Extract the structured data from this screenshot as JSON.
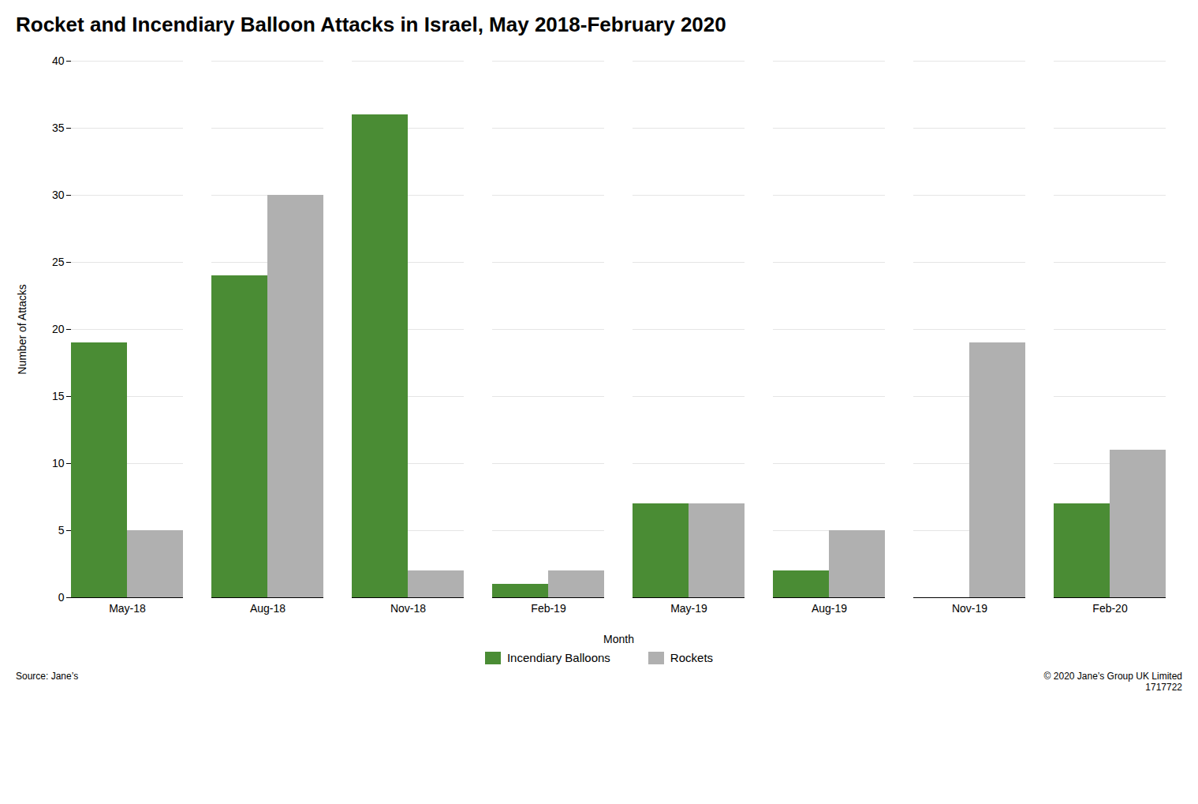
{
  "chart_data": {
    "type": "bar",
    "title": "Rocket and Incendiary Balloon Attacks in Israel, May 2018-February 2020",
    "xlabel": "Month",
    "ylabel": "Number of Attacks",
    "categories": [
      "May-18",
      "Aug-18",
      "Nov-18",
      "Feb-19",
      "May-19",
      "Aug-19",
      "Nov-19",
      "Feb-20"
    ],
    "series": [
      {
        "name": "Incendiary Balloons",
        "color": "#4a8c34",
        "values": [
          19,
          24,
          36,
          1,
          7,
          2,
          0,
          7
        ]
      },
      {
        "name": "Rockets",
        "color": "#b0b0b0",
        "values": [
          5,
          30,
          2,
          2,
          7,
          5,
          19,
          11
        ]
      }
    ],
    "ylim": [
      0,
      40
    ],
    "yticks": [
      0,
      5,
      10,
      15,
      20,
      25,
      30,
      35,
      40
    ],
    "grid": true,
    "legend": "bottom",
    "annotations": [
      "Source:  Jane’s",
      "© 2020  Jane’s  Group UK Limited\n1717722"
    ]
  }
}
